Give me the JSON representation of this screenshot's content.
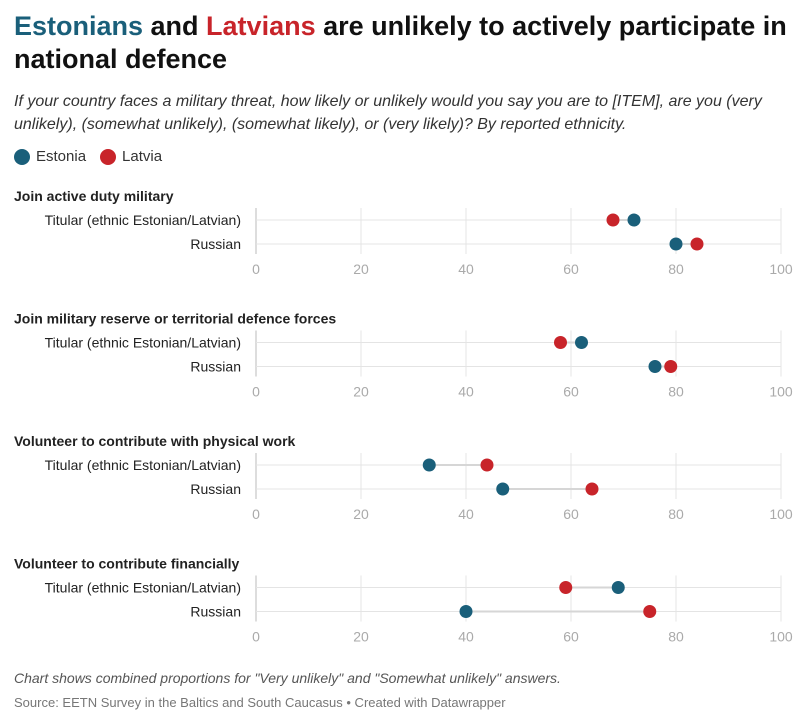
{
  "header": {
    "title_part1": "Estonians",
    "title_part2": " and ",
    "title_part3": "Latvians",
    "title_part4": " are unlikely to actively participate in national defence",
    "subtitle": "If your country faces a military threat, how likely or unlikely would you say you are to [ITEM], are you (very unlikely), (somewhat unlikely), (somewhat likely), or (very likely)? By reported ethnicity."
  },
  "legend": [
    {
      "label": "Estonia",
      "color": "#1a5f7a"
    },
    {
      "label": "Latvia",
      "color": "#c8242a"
    }
  ],
  "footer": {
    "note": "Chart shows combined proportions for \"Very unlikely\" and \"Somewhat unlikely\" answers.",
    "source": "Source: EETN Survey in the Baltics and South Caucasus • Created with Datawrapper"
  },
  "chart_data": {
    "type": "scatter",
    "xlim": [
      0,
      100
    ],
    "x_ticks": [
      "0",
      "20",
      "40",
      "60",
      "80",
      "100"
    ],
    "series_names": [
      "Estonia",
      "Latvia"
    ],
    "series_colors": [
      "#1a5f7a",
      "#c8242a"
    ],
    "panels": [
      {
        "title": "Join active duty military",
        "rows": [
          {
            "label": "Titular (ethnic Estonian/Latvian)",
            "values": [
              72,
              68
            ]
          },
          {
            "label": "Russian",
            "values": [
              80,
              84
            ]
          }
        ]
      },
      {
        "title": "Join military reserve or territorial defence forces",
        "rows": [
          {
            "label": "Titular (ethnic Estonian/Latvian)",
            "values": [
              62,
              58
            ]
          },
          {
            "label": "Russian",
            "values": [
              76,
              79
            ]
          }
        ]
      },
      {
        "title": "Volunteer to contribute with physical work",
        "rows": [
          {
            "label": "Titular (ethnic Estonian/Latvian)",
            "values": [
              33,
              44
            ]
          },
          {
            "label": "Russian",
            "values": [
              47,
              64
            ]
          }
        ]
      },
      {
        "title": "Volunteer to contribute financially",
        "rows": [
          {
            "label": "Titular (ethnic Estonian/Latvian)",
            "values": [
              69,
              59
            ]
          },
          {
            "label": "Russian",
            "values": [
              40,
              75
            ]
          }
        ]
      }
    ]
  }
}
